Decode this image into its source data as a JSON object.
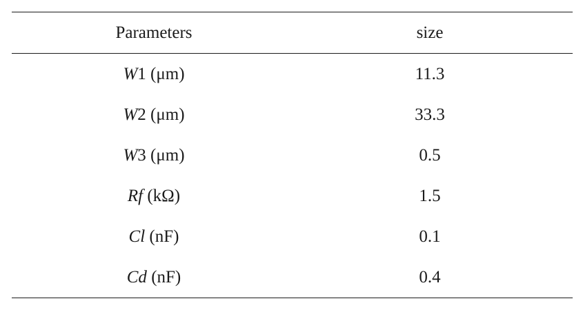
{
  "table": {
    "headers": {
      "parameter": "Parameters",
      "value": "size"
    },
    "rows": [
      {
        "symbol": "W",
        "suffix": "1 (μm)",
        "value": "11.3"
      },
      {
        "symbol": "W",
        "suffix": "2 (μm)",
        "value": "33.3"
      },
      {
        "symbol": "W",
        "suffix": "3 (μm)",
        "value": "0.5"
      },
      {
        "symbol": "Rf",
        "suffix": " (kΩ)",
        "value": "1.5"
      },
      {
        "symbol": "Cl",
        "suffix": " (nF)",
        "value": "0.1"
      },
      {
        "symbol": "Cd",
        "suffix": " (nF)",
        "value": "0.4"
      }
    ]
  }
}
